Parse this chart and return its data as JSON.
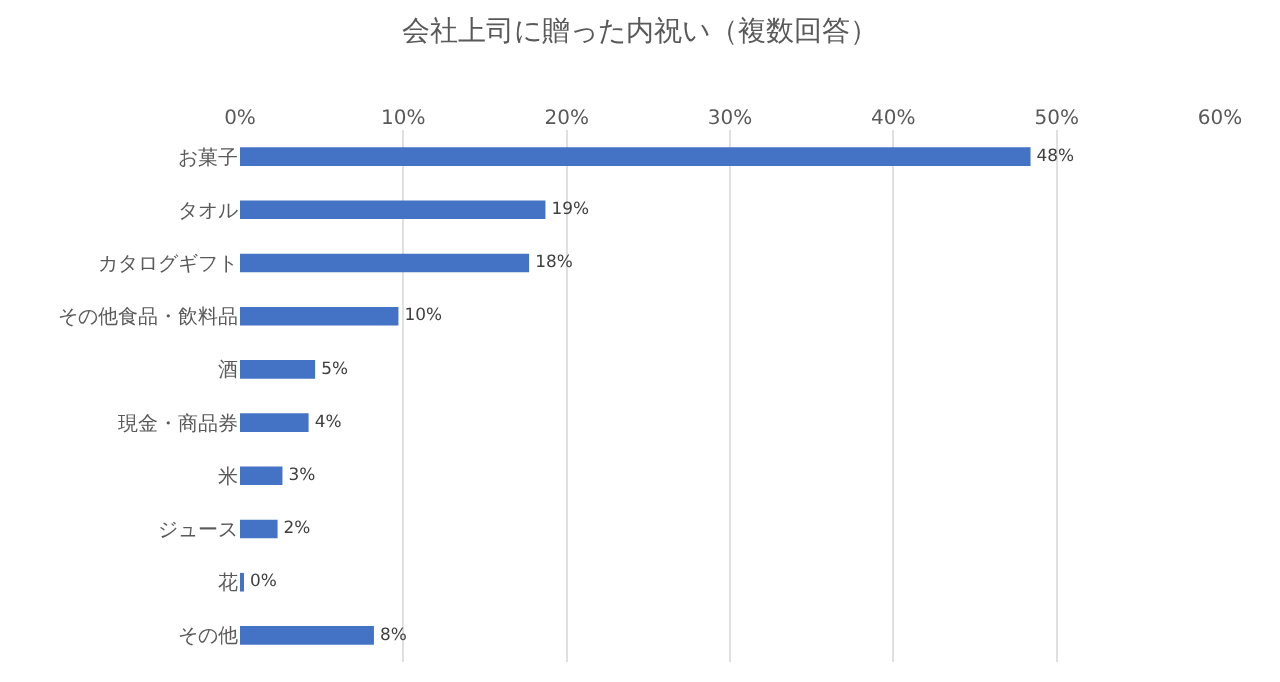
{
  "chart_data": {
    "type": "bar",
    "orientation": "horizontal",
    "title": "会社上司に贈った内祝い（複数回答）",
    "categories": [
      "お菓子",
      "タオル",
      "カタログギフト",
      "その他食品・飲料品",
      "酒",
      "現金・商品券",
      "米",
      "ジュース",
      "花",
      "その他"
    ],
    "values": [
      48.4,
      18.7,
      17.7,
      9.7,
      4.6,
      4.2,
      2.6,
      2.3,
      0.2,
      8.2
    ],
    "value_labels": [
      "48%",
      "19%",
      "18%",
      "10%",
      "5%",
      "4%",
      "3%",
      "2%",
      "0%",
      "8%"
    ],
    "color": "#4472c4",
    "xlim": [
      0,
      60
    ],
    "xticks": [
      {
        "value": 0,
        "label": "0%"
      },
      {
        "value": 10,
        "label": "10%"
      },
      {
        "value": 20,
        "label": "20%"
      },
      {
        "value": 30,
        "label": "30%"
      },
      {
        "value": 40,
        "label": "40%"
      },
      {
        "value": 50,
        "label": "50%"
      },
      {
        "value": 60,
        "label": "60%"
      }
    ],
    "grid": "x",
    "legend": false
  }
}
